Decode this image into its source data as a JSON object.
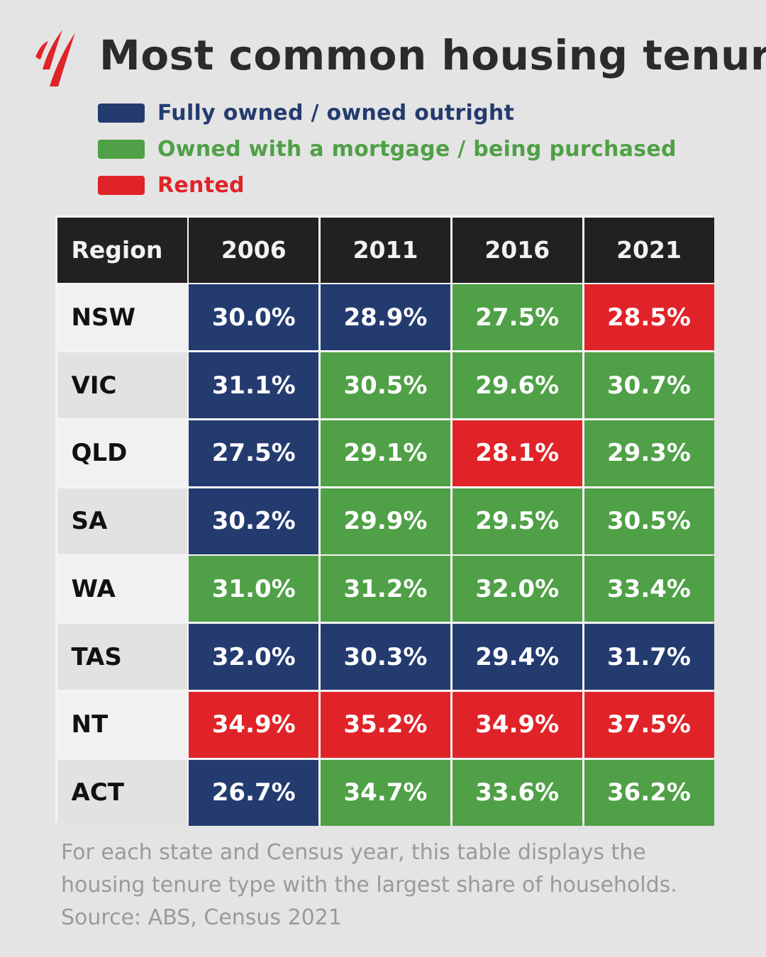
{
  "title": "Most common housing tenure",
  "colors": {
    "fully_owned": "#243b70",
    "mortgage": "#4fa046",
    "rented": "#e02328",
    "logo": "#e02328"
  },
  "legend": [
    {
      "key": "fully_owned",
      "label": "Fully owned / owned outright",
      "color": "#243b70"
    },
    {
      "key": "mortgage",
      "label": "Owned with a mortgage / being purchased",
      "color": "#4fa046"
    },
    {
      "key": "rented",
      "label": "Rented",
      "color": "#e02328"
    }
  ],
  "chart_data": {
    "type": "table",
    "title": "Most common housing tenure",
    "columns": [
      "Region",
      "2006",
      "2011",
      "2016",
      "2021"
    ],
    "rows": [
      {
        "region": "NSW",
        "values": [
          "30.0%",
          "28.9%",
          "27.5%",
          "28.5%"
        ],
        "tenure": [
          "fully_owned",
          "fully_owned",
          "mortgage",
          "rented"
        ]
      },
      {
        "region": "VIC",
        "values": [
          "31.1%",
          "30.5%",
          "29.6%",
          "30.7%"
        ],
        "tenure": [
          "fully_owned",
          "mortgage",
          "mortgage",
          "mortgage"
        ]
      },
      {
        "region": "QLD",
        "values": [
          "27.5%",
          "29.1%",
          "28.1%",
          "29.3%"
        ],
        "tenure": [
          "fully_owned",
          "mortgage",
          "rented",
          "mortgage"
        ]
      },
      {
        "region": "SA",
        "values": [
          "30.2%",
          "29.9%",
          "29.5%",
          "30.5%"
        ],
        "tenure": [
          "fully_owned",
          "mortgage",
          "mortgage",
          "mortgage"
        ]
      },
      {
        "region": "WA",
        "values": [
          "31.0%",
          "31.2%",
          "32.0%",
          "33.4%"
        ],
        "tenure": [
          "mortgage",
          "mortgage",
          "mortgage",
          "mortgage"
        ]
      },
      {
        "region": "TAS",
        "values": [
          "32.0%",
          "30.3%",
          "29.4%",
          "31.7%"
        ],
        "tenure": [
          "fully_owned",
          "fully_owned",
          "fully_owned",
          "fully_owned"
        ]
      },
      {
        "region": "NT",
        "values": [
          "34.9%",
          "35.2%",
          "34.9%",
          "37.5%"
        ],
        "tenure": [
          "rented",
          "rented",
          "rented",
          "rented"
        ]
      },
      {
        "region": "ACT",
        "values": [
          "26.7%",
          "34.7%",
          "33.6%",
          "36.2%"
        ],
        "tenure": [
          "fully_owned",
          "mortgage",
          "mortgage",
          "mortgage"
        ]
      }
    ]
  },
  "footnote": {
    "line1": "For each state and Census year, this table displays the",
    "line2": "housing tenure type with the largest share of households.",
    "line3": "Source: ABS, Census 2021"
  }
}
